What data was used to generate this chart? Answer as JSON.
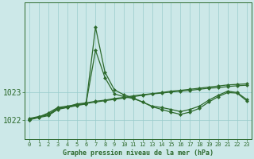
{
  "xlabel": "Graphe pression niveau de la mer (hPa)",
  "hours": [
    0,
    1,
    2,
    3,
    4,
    5,
    6,
    7,
    8,
    9,
    10,
    11,
    12,
    13,
    14,
    15,
    16,
    17,
    18,
    19,
    20,
    21,
    22,
    23
  ],
  "line1": [
    1022.0,
    1022.1,
    1022.25,
    1022.45,
    1022.5,
    1022.55,
    1022.6,
    1024.55,
    1023.55,
    1022.95,
    1022.85,
    1022.78,
    1022.65,
    1022.5,
    1022.45,
    1022.38,
    1022.3,
    1022.38,
    1022.5,
    1022.72,
    1022.9,
    1023.05,
    1023.0,
    1022.75
  ],
  "line2": [
    1022.0,
    1022.08,
    1022.15,
    1022.38,
    1022.45,
    1022.52,
    1022.58,
    1025.4,
    1023.75,
    1023.1,
    1022.92,
    1022.8,
    1022.65,
    1022.48,
    1022.38,
    1022.28,
    1022.2,
    1022.28,
    1022.42,
    1022.65,
    1022.85,
    1023.0,
    1022.98,
    1022.7
  ],
  "line3_x": [
    0,
    1,
    2,
    3,
    4,
    5,
    6,
    7,
    8,
    9,
    10,
    11,
    12,
    13,
    14,
    15,
    16,
    17,
    18,
    19,
    20,
    21,
    22,
    23
  ],
  "line3": [
    1022.05,
    1022.12,
    1022.2,
    1022.42,
    1022.48,
    1022.58,
    1022.62,
    1022.68,
    1022.72,
    1022.78,
    1022.82,
    1022.88,
    1022.92,
    1022.96,
    1023.0,
    1023.05,
    1023.08,
    1023.12,
    1023.16,
    1023.2,
    1023.24,
    1023.28,
    1023.3,
    1023.32
  ],
  "line4_x": [
    0,
    1,
    2,
    3,
    4,
    5,
    6,
    7,
    8,
    9,
    10,
    11,
    12,
    13,
    14,
    15,
    16,
    17,
    18,
    19,
    20,
    21,
    22,
    23
  ],
  "line4": [
    1022.02,
    1022.1,
    1022.18,
    1022.4,
    1022.46,
    1022.54,
    1022.6,
    1022.65,
    1022.7,
    1022.75,
    1022.8,
    1022.85,
    1022.9,
    1022.95,
    1022.98,
    1023.02,
    1023.05,
    1023.08,
    1023.12,
    1023.16,
    1023.18,
    1023.22,
    1023.25,
    1023.27
  ],
  "line_color": "#2d6a2d",
  "bg_color": "#cce8e8",
  "grid_color": "#99cccc",
  "yticks": [
    1022,
    1023
  ],
  "ylim": [
    1021.3,
    1026.3
  ],
  "xlim": [
    -0.5,
    23.5
  ]
}
